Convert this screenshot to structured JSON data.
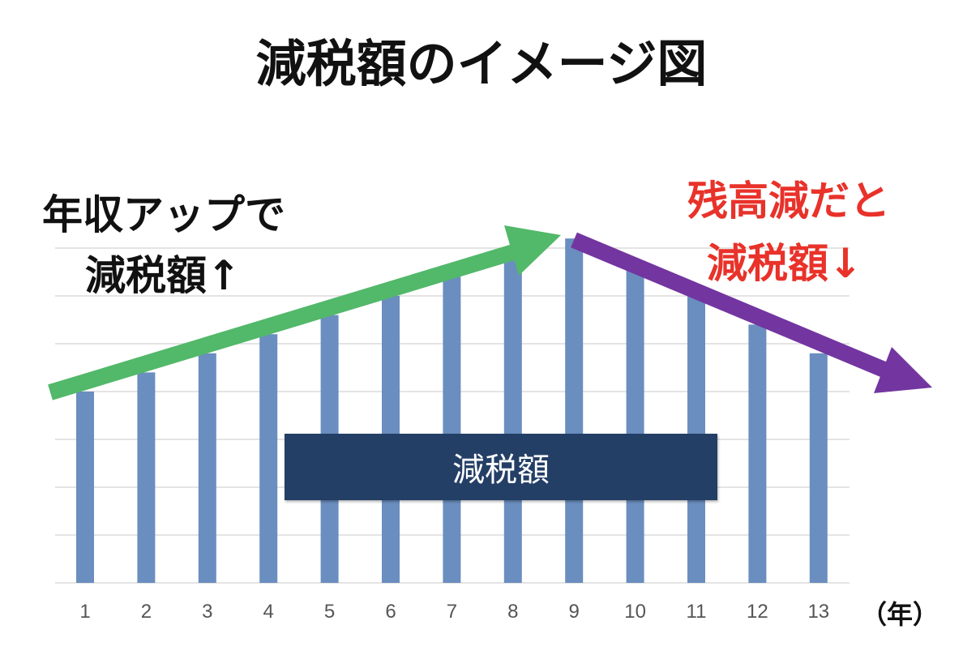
{
  "title": "減税額のイメージ図",
  "annotations": {
    "left_line1": "年収アップで",
    "left_line2": "減税額↑",
    "right_line1": "残高減だと",
    "right_line2": "減税額↓",
    "center_box": "減税額",
    "up_arrow_color": "#52b86a",
    "down_arrow_color": "#7335a0"
  },
  "chart_data": {
    "type": "bar",
    "title": "減税額のイメージ図",
    "xlabel": "（年）",
    "ylabel": "",
    "categories": [
      "1",
      "2",
      "3",
      "4",
      "5",
      "6",
      "7",
      "8",
      "9",
      "10",
      "11",
      "12",
      "13"
    ],
    "values": [
      4.0,
      4.4,
      4.8,
      5.2,
      5.6,
      6.0,
      6.4,
      6.8,
      7.2,
      6.6,
      6.0,
      5.4,
      4.8
    ],
    "ylim": [
      0,
      7
    ],
    "y_tick_labels_shown": false,
    "grid": true,
    "bar_color": "#6a8ebf"
  }
}
